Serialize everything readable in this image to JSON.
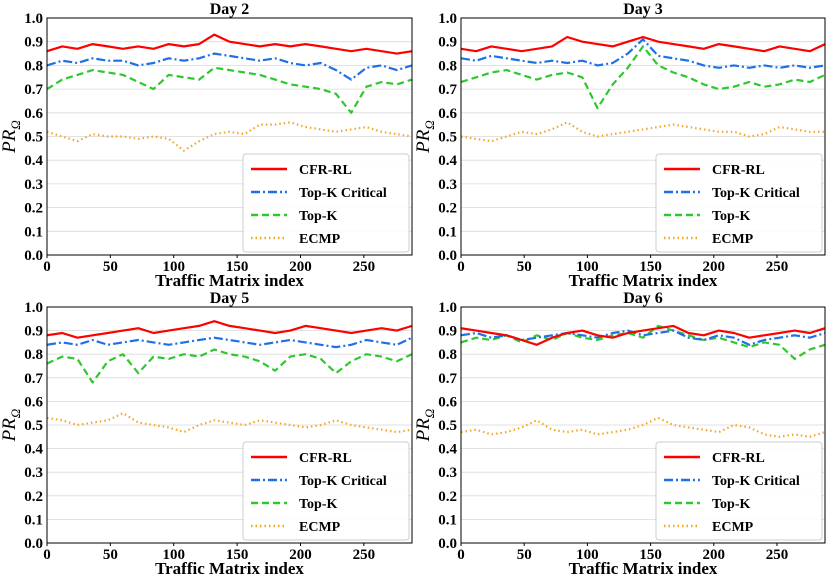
{
  "chart_data": [
    {
      "type": "line",
      "title": "Day 2",
      "xlabel": "Traffic Matrix index",
      "ylabel_main": "PR",
      "ylabel_sub": "Ω",
      "xlim": [
        0,
        288
      ],
      "ylim": [
        0.0,
        1.0
      ],
      "xticks": [
        "0",
        "50",
        "100",
        "150",
        "200",
        "250"
      ],
      "yticks": [
        "0.0",
        "0.1",
        "0.2",
        "0.3",
        "0.4",
        "0.5",
        "0.6",
        "0.7",
        "0.8",
        "0.9",
        "1.0"
      ],
      "legend_position": "lower-right",
      "series": [
        {
          "name": "CFR-RL",
          "color": "#ff0000",
          "style": "solid",
          "x": [
            0,
            12,
            24,
            36,
            48,
            60,
            72,
            84,
            96,
            108,
            120,
            132,
            144,
            156,
            168,
            180,
            192,
            204,
            216,
            228,
            240,
            252,
            264,
            276,
            288
          ],
          "values": [
            0.86,
            0.88,
            0.87,
            0.89,
            0.88,
            0.87,
            0.88,
            0.87,
            0.89,
            0.88,
            0.89,
            0.93,
            0.9,
            0.89,
            0.88,
            0.89,
            0.88,
            0.89,
            0.88,
            0.87,
            0.86,
            0.87,
            0.86,
            0.85,
            0.86
          ]
        },
        {
          "name": "Top-K Critical",
          "color": "#1f6fe8",
          "style": "dashdot",
          "x": [
            0,
            12,
            24,
            36,
            48,
            60,
            72,
            84,
            96,
            108,
            120,
            132,
            144,
            156,
            168,
            180,
            192,
            204,
            216,
            228,
            240,
            252,
            264,
            276,
            288
          ],
          "values": [
            0.8,
            0.82,
            0.81,
            0.83,
            0.82,
            0.82,
            0.8,
            0.81,
            0.83,
            0.82,
            0.83,
            0.85,
            0.84,
            0.83,
            0.82,
            0.83,
            0.81,
            0.8,
            0.81,
            0.78,
            0.74,
            0.79,
            0.8,
            0.78,
            0.8
          ]
        },
        {
          "name": "Top-K",
          "color": "#2ec82e",
          "style": "dashed",
          "x": [
            0,
            12,
            24,
            36,
            48,
            60,
            72,
            84,
            96,
            108,
            120,
            132,
            144,
            156,
            168,
            180,
            192,
            204,
            216,
            228,
            240,
            252,
            264,
            276,
            288
          ],
          "values": [
            0.7,
            0.74,
            0.76,
            0.78,
            0.77,
            0.76,
            0.73,
            0.7,
            0.76,
            0.75,
            0.74,
            0.79,
            0.78,
            0.77,
            0.76,
            0.74,
            0.72,
            0.71,
            0.7,
            0.68,
            0.6,
            0.71,
            0.73,
            0.72,
            0.74
          ]
        },
        {
          "name": "ECMP",
          "color": "#f5a623",
          "style": "dotted",
          "x": [
            0,
            12,
            24,
            36,
            48,
            60,
            72,
            84,
            96,
            108,
            120,
            132,
            144,
            156,
            168,
            180,
            192,
            204,
            216,
            228,
            240,
            252,
            264,
            276,
            288
          ],
          "values": [
            0.52,
            0.5,
            0.48,
            0.51,
            0.5,
            0.5,
            0.49,
            0.5,
            0.49,
            0.44,
            0.48,
            0.51,
            0.52,
            0.51,
            0.55,
            0.55,
            0.56,
            0.54,
            0.53,
            0.52,
            0.53,
            0.54,
            0.52,
            0.51,
            0.5
          ]
        }
      ]
    },
    {
      "type": "line",
      "title": "Day 3",
      "xlabel": "Traffic Matrix index",
      "ylabel_main": "PR",
      "ylabel_sub": "Ω",
      "xlim": [
        0,
        288
      ],
      "ylim": [
        0.0,
        1.0
      ],
      "xticks": [
        "0",
        "50",
        "100",
        "150",
        "200",
        "250"
      ],
      "yticks": [
        "0.0",
        "0.1",
        "0.2",
        "0.3",
        "0.4",
        "0.5",
        "0.6",
        "0.7",
        "0.8",
        "0.9",
        "1.0"
      ],
      "legend_position": "lower-right",
      "series": [
        {
          "name": "CFR-RL",
          "color": "#ff0000",
          "style": "solid",
          "x": [
            0,
            12,
            24,
            36,
            48,
            60,
            72,
            84,
            96,
            108,
            120,
            132,
            144,
            156,
            168,
            180,
            192,
            204,
            216,
            228,
            240,
            252,
            264,
            276,
            288
          ],
          "values": [
            0.87,
            0.86,
            0.88,
            0.87,
            0.86,
            0.87,
            0.88,
            0.92,
            0.9,
            0.89,
            0.88,
            0.9,
            0.92,
            0.9,
            0.89,
            0.88,
            0.87,
            0.89,
            0.88,
            0.87,
            0.86,
            0.88,
            0.87,
            0.86,
            0.89
          ]
        },
        {
          "name": "Top-K Critical",
          "color": "#1f6fe8",
          "style": "dashdot",
          "x": [
            0,
            12,
            24,
            36,
            48,
            60,
            72,
            84,
            96,
            108,
            120,
            132,
            144,
            156,
            168,
            180,
            192,
            204,
            216,
            228,
            240,
            252,
            264,
            276,
            288
          ],
          "values": [
            0.83,
            0.82,
            0.84,
            0.83,
            0.82,
            0.81,
            0.82,
            0.81,
            0.82,
            0.8,
            0.81,
            0.85,
            0.91,
            0.84,
            0.83,
            0.82,
            0.8,
            0.79,
            0.8,
            0.79,
            0.8,
            0.79,
            0.8,
            0.79,
            0.8
          ]
        },
        {
          "name": "Top-K",
          "color": "#2ec82e",
          "style": "dashed",
          "x": [
            0,
            12,
            24,
            36,
            48,
            60,
            72,
            84,
            96,
            108,
            120,
            132,
            144,
            156,
            168,
            180,
            192,
            204,
            216,
            228,
            240,
            252,
            264,
            276,
            288
          ],
          "values": [
            0.73,
            0.75,
            0.77,
            0.78,
            0.76,
            0.74,
            0.76,
            0.77,
            0.75,
            0.62,
            0.72,
            0.79,
            0.88,
            0.8,
            0.77,
            0.75,
            0.72,
            0.7,
            0.71,
            0.73,
            0.71,
            0.72,
            0.74,
            0.73,
            0.76
          ]
        },
        {
          "name": "ECMP",
          "color": "#f5a623",
          "style": "dotted",
          "x": [
            0,
            12,
            24,
            36,
            48,
            60,
            72,
            84,
            96,
            108,
            120,
            132,
            144,
            156,
            168,
            180,
            192,
            204,
            216,
            228,
            240,
            252,
            264,
            276,
            288
          ],
          "values": [
            0.5,
            0.49,
            0.48,
            0.5,
            0.52,
            0.51,
            0.53,
            0.56,
            0.52,
            0.5,
            0.51,
            0.52,
            0.53,
            0.54,
            0.55,
            0.54,
            0.53,
            0.52,
            0.52,
            0.5,
            0.51,
            0.54,
            0.53,
            0.52,
            0.52
          ]
        }
      ]
    },
    {
      "type": "line",
      "title": "Day 5",
      "xlabel": "Traffic Matrix index",
      "ylabel_main": "PR",
      "ylabel_sub": "Ω",
      "xlim": [
        0,
        288
      ],
      "ylim": [
        0.0,
        1.0
      ],
      "xticks": [
        "0",
        "50",
        "100",
        "150",
        "200",
        "250"
      ],
      "yticks": [
        "0.0",
        "0.1",
        "0.2",
        "0.3",
        "0.4",
        "0.5",
        "0.6",
        "0.7",
        "0.8",
        "0.9",
        "1.0"
      ],
      "legend_position": "lower-right",
      "series": [
        {
          "name": "CFR-RL",
          "color": "#ff0000",
          "style": "solid",
          "x": [
            0,
            12,
            24,
            36,
            48,
            60,
            72,
            84,
            96,
            108,
            120,
            132,
            144,
            156,
            168,
            180,
            192,
            204,
            216,
            228,
            240,
            252,
            264,
            276,
            288
          ],
          "values": [
            0.88,
            0.89,
            0.87,
            0.88,
            0.89,
            0.9,
            0.91,
            0.89,
            0.9,
            0.91,
            0.92,
            0.94,
            0.92,
            0.91,
            0.9,
            0.89,
            0.9,
            0.92,
            0.91,
            0.9,
            0.89,
            0.9,
            0.91,
            0.9,
            0.92
          ]
        },
        {
          "name": "Top-K Critical",
          "color": "#1f6fe8",
          "style": "dashdot",
          "x": [
            0,
            12,
            24,
            36,
            48,
            60,
            72,
            84,
            96,
            108,
            120,
            132,
            144,
            156,
            168,
            180,
            192,
            204,
            216,
            228,
            240,
            252,
            264,
            276,
            288
          ],
          "values": [
            0.84,
            0.85,
            0.84,
            0.86,
            0.84,
            0.85,
            0.86,
            0.85,
            0.84,
            0.85,
            0.86,
            0.87,
            0.86,
            0.85,
            0.84,
            0.85,
            0.86,
            0.85,
            0.84,
            0.83,
            0.84,
            0.86,
            0.85,
            0.84,
            0.87
          ]
        },
        {
          "name": "Top-K",
          "color": "#2ec82e",
          "style": "dashed",
          "x": [
            0,
            12,
            24,
            36,
            48,
            60,
            72,
            84,
            96,
            108,
            120,
            132,
            144,
            156,
            168,
            180,
            192,
            204,
            216,
            228,
            240,
            252,
            264,
            276,
            288
          ],
          "values": [
            0.76,
            0.79,
            0.78,
            0.68,
            0.77,
            0.8,
            0.72,
            0.79,
            0.78,
            0.8,
            0.79,
            0.82,
            0.8,
            0.79,
            0.77,
            0.73,
            0.79,
            0.8,
            0.78,
            0.72,
            0.77,
            0.8,
            0.79,
            0.77,
            0.8
          ]
        },
        {
          "name": "ECMP",
          "color": "#f5a623",
          "style": "dotted",
          "x": [
            0,
            12,
            24,
            36,
            48,
            60,
            72,
            84,
            96,
            108,
            120,
            132,
            144,
            156,
            168,
            180,
            192,
            204,
            216,
            228,
            240,
            252,
            264,
            276,
            288
          ],
          "values": [
            0.53,
            0.52,
            0.5,
            0.51,
            0.52,
            0.55,
            0.51,
            0.5,
            0.49,
            0.47,
            0.5,
            0.52,
            0.51,
            0.5,
            0.52,
            0.51,
            0.5,
            0.49,
            0.5,
            0.52,
            0.5,
            0.49,
            0.48,
            0.47,
            0.48
          ]
        }
      ]
    },
    {
      "type": "line",
      "title": "Day 6",
      "xlabel": "Traffic Matrix index",
      "ylabel_main": "PR",
      "ylabel_sub": "Ω",
      "xlim": [
        0,
        288
      ],
      "ylim": [
        0.0,
        1.0
      ],
      "xticks": [
        "0",
        "50",
        "100",
        "150",
        "200",
        "250"
      ],
      "yticks": [
        "0.0",
        "0.1",
        "0.2",
        "0.3",
        "0.4",
        "0.5",
        "0.6",
        "0.7",
        "0.8",
        "0.9",
        "1.0"
      ],
      "legend_position": "lower-right",
      "series": [
        {
          "name": "CFR-RL",
          "color": "#ff0000",
          "style": "solid",
          "x": [
            0,
            12,
            24,
            36,
            48,
            60,
            72,
            84,
            96,
            108,
            120,
            132,
            144,
            156,
            168,
            180,
            192,
            204,
            216,
            228,
            240,
            252,
            264,
            276,
            288
          ],
          "values": [
            0.91,
            0.9,
            0.89,
            0.88,
            0.86,
            0.84,
            0.87,
            0.89,
            0.9,
            0.88,
            0.87,
            0.89,
            0.9,
            0.91,
            0.92,
            0.89,
            0.88,
            0.9,
            0.89,
            0.87,
            0.88,
            0.89,
            0.9,
            0.89,
            0.91
          ]
        },
        {
          "name": "Top-K Critical",
          "color": "#1f6fe8",
          "style": "dashdot",
          "x": [
            0,
            12,
            24,
            36,
            48,
            60,
            72,
            84,
            96,
            108,
            120,
            132,
            144,
            156,
            168,
            180,
            192,
            204,
            216,
            228,
            240,
            252,
            264,
            276,
            288
          ],
          "values": [
            0.88,
            0.89,
            0.87,
            0.88,
            0.86,
            0.87,
            0.88,
            0.89,
            0.88,
            0.87,
            0.89,
            0.9,
            0.88,
            0.89,
            0.9,
            0.87,
            0.86,
            0.88,
            0.87,
            0.84,
            0.86,
            0.87,
            0.88,
            0.87,
            0.89
          ]
        },
        {
          "name": "Top-K",
          "color": "#2ec82e",
          "style": "dashed",
          "x": [
            0,
            12,
            24,
            36,
            48,
            60,
            72,
            84,
            96,
            108,
            120,
            132,
            144,
            156,
            168,
            180,
            192,
            204,
            216,
            228,
            240,
            252,
            264,
            276,
            288
          ],
          "values": [
            0.85,
            0.87,
            0.86,
            0.88,
            0.85,
            0.88,
            0.86,
            0.89,
            0.87,
            0.86,
            0.88,
            0.89,
            0.87,
            0.92,
            0.9,
            0.88,
            0.86,
            0.87,
            0.85,
            0.83,
            0.85,
            0.84,
            0.78,
            0.82,
            0.84
          ]
        },
        {
          "name": "ECMP",
          "color": "#f5a623",
          "style": "dotted",
          "x": [
            0,
            12,
            24,
            36,
            48,
            60,
            72,
            84,
            96,
            108,
            120,
            132,
            144,
            156,
            168,
            180,
            192,
            204,
            216,
            228,
            240,
            252,
            264,
            276,
            288
          ],
          "values": [
            0.47,
            0.48,
            0.46,
            0.47,
            0.49,
            0.52,
            0.48,
            0.47,
            0.48,
            0.46,
            0.47,
            0.48,
            0.5,
            0.53,
            0.5,
            0.49,
            0.48,
            0.47,
            0.5,
            0.49,
            0.46,
            0.45,
            0.46,
            0.45,
            0.47
          ]
        }
      ]
    }
  ]
}
